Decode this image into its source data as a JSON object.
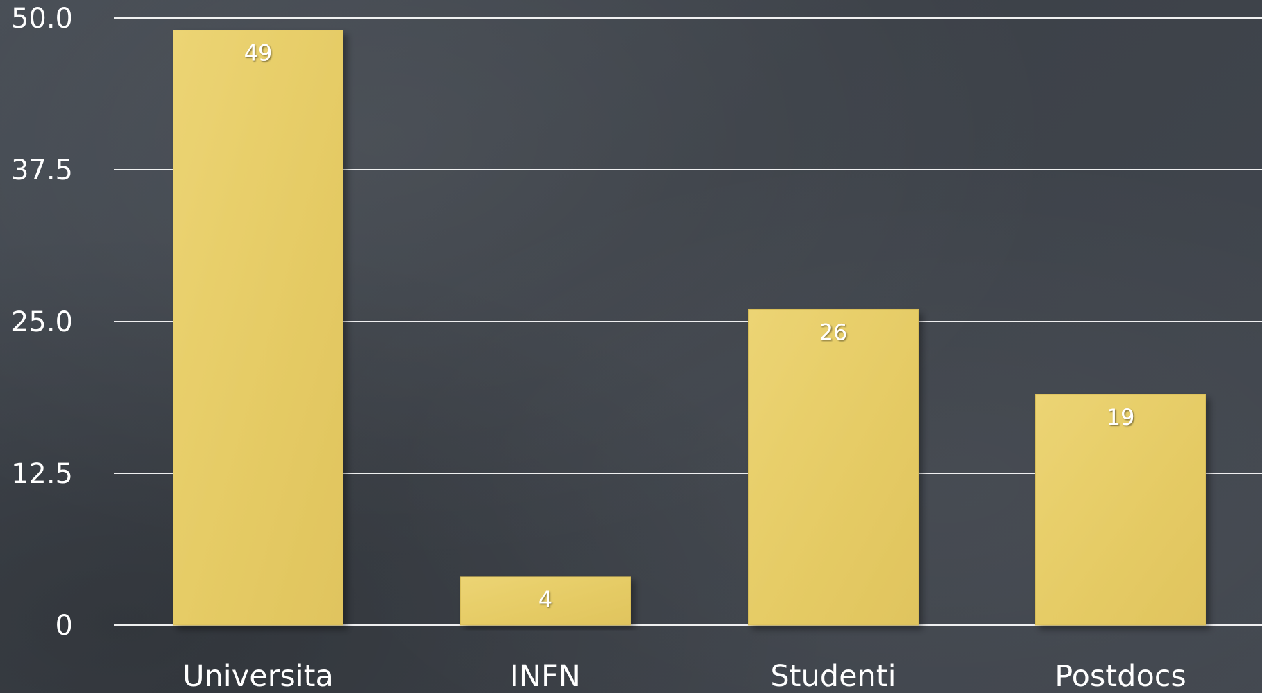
{
  "chart_data": {
    "type": "bar",
    "categories": [
      "Universita",
      "INFN",
      "Studenti",
      "Postdocs"
    ],
    "values": [
      49,
      4,
      26,
      19
    ],
    "data_labels": [
      "49",
      "4",
      "26",
      "19"
    ],
    "yticks": [
      0,
      12.5,
      25.0,
      37.5,
      50.0
    ],
    "ytick_labels": [
      "0",
      "12.5",
      "25.0",
      "37.5",
      "50.0"
    ],
    "ylim": [
      0,
      50
    ],
    "grid": true,
    "colors": {
      "bar": "#e8ce6a",
      "bar_edge": "#d8bd58",
      "background": "#3f444c",
      "text": "#ffffff",
      "grid": "#ffffff"
    }
  }
}
